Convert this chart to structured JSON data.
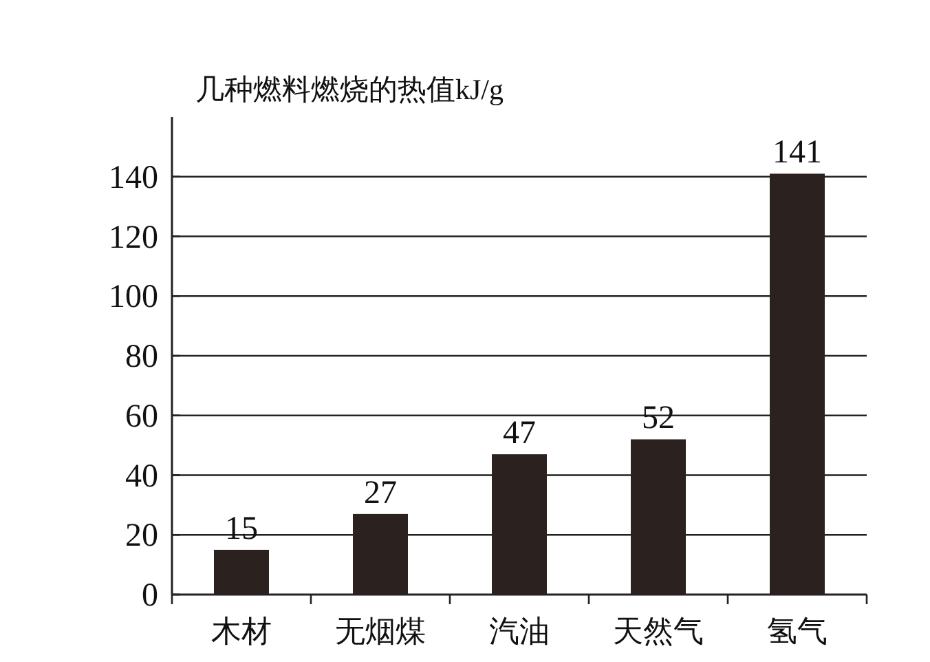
{
  "chart_data": {
    "type": "bar",
    "title": "几种燃料燃烧的热值kJ/g",
    "categories": [
      "木材",
      "无烟煤",
      "汽油",
      "天然气",
      "氢气"
    ],
    "values": [
      15,
      27,
      47,
      52,
      141
    ],
    "color": "#2b2220",
    "ylim": [
      0,
      160
    ],
    "yticks": [
      0,
      20,
      40,
      60,
      80,
      100,
      120,
      140
    ],
    "grid": "y",
    "data_labels": true
  }
}
